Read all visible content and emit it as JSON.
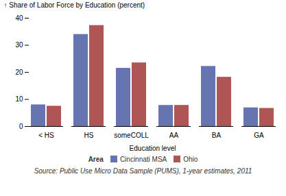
{
  "chart_data": {
    "type": "bar",
    "categories": [
      "< HS",
      "HS",
      "someCOLL",
      "AA",
      "BA",
      "GA"
    ],
    "series": [
      {
        "name": "Cincinnati MSA",
        "color": "#6675b0",
        "values": [
          8.0,
          34.0,
          21.5,
          7.8,
          22.2,
          6.9
        ]
      },
      {
        "name": "Ohio",
        "color": "#b05555",
        "values": [
          7.5,
          37.3,
          23.5,
          7.8,
          18.2,
          6.7
        ]
      }
    ],
    "xlabel": "Education level",
    "ylabel": "Share of Labor Force by Education (percent)",
    "ylim": [
      0,
      40
    ],
    "yticks": [
      0,
      10,
      20,
      30,
      40
    ],
    "grid": false,
    "legend": "bottom",
    "legend_title": "Area",
    "caption": "Source:  Public Use Micro Data Sample (PUMS), 1-year estimates, 2011"
  }
}
